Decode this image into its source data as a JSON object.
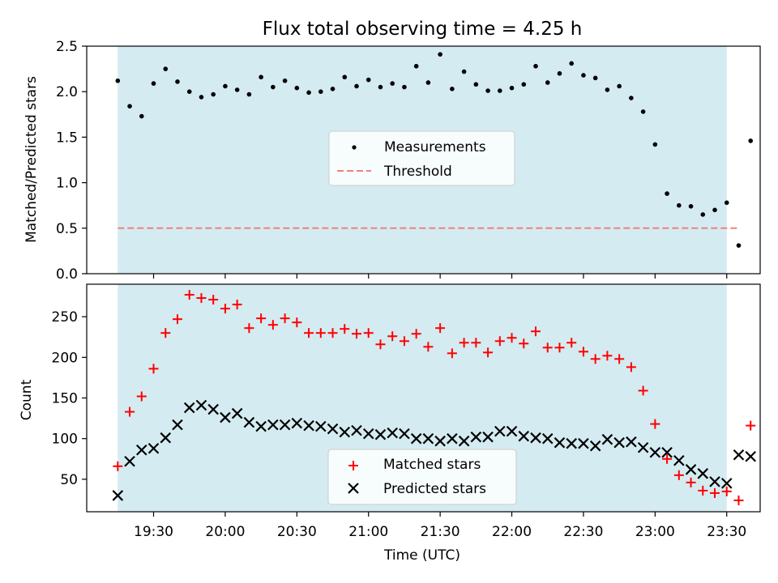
{
  "chart_data": {
    "title": "Flux total observing time = 4.25 h",
    "xlabel": "Time (UTC)",
    "x_tick_labels": [
      "19:30",
      "20:00",
      "20:30",
      "21:00",
      "21:30",
      "22:00",
      "22:30",
      "23:00",
      "23:30"
    ],
    "observing_window": [
      "19:15",
      "23:30"
    ],
    "shade_color": "#d4ebf1",
    "panels": [
      {
        "type": "scatter",
        "ylabel": "Matched/Predicted stars",
        "ylim": [
          0,
          2.5
        ],
        "y_ticks": [
          "0.0",
          "0.5",
          "1.0",
          "1.5",
          "2.0",
          "2.5"
        ],
        "threshold": 0.5,
        "legend": [
          "Measurements",
          "Threshold"
        ],
        "legend_position": "center",
        "series": [
          {
            "name": "Measurements",
            "color": "#000000",
            "marker": "dot",
            "x": [
              "19:15",
              "19:20",
              "19:25",
              "19:30",
              "19:35",
              "19:40",
              "19:45",
              "19:50",
              "19:55",
              "20:00",
              "20:05",
              "20:10",
              "20:15",
              "20:20",
              "20:25",
              "20:30",
              "20:35",
              "20:40",
              "20:45",
              "20:50",
              "20:55",
              "21:00",
              "21:05",
              "21:10",
              "21:15",
              "21:20",
              "21:25",
              "21:30",
              "21:35",
              "21:40",
              "21:45",
              "21:50",
              "21:55",
              "22:00",
              "22:05",
              "22:10",
              "22:15",
              "22:20",
              "22:25",
              "22:30",
              "22:35",
              "22:40",
              "22:45",
              "22:50",
              "22:55",
              "23:00",
              "23:05",
              "23:10",
              "23:15",
              "23:20",
              "23:25",
              "23:30",
              "23:35",
              "23:40"
            ],
            "values": [
              2.12,
              1.84,
              1.73,
              2.09,
              2.25,
              2.11,
              2.0,
              1.94,
              1.97,
              2.06,
              2.02,
              1.97,
              2.16,
              2.05,
              2.12,
              2.04,
              1.99,
              2.0,
              2.03,
              2.16,
              2.06,
              2.13,
              2.05,
              2.09,
              2.05,
              2.28,
              2.1,
              2.41,
              2.03,
              2.22,
              2.08,
              2.01,
              2.01,
              2.04,
              2.08,
              2.28,
              2.1,
              2.2,
              2.31,
              2.18,
              2.15,
              2.02,
              2.06,
              1.93,
              1.78,
              1.42,
              0.88,
              0.75,
              0.74,
              0.65,
              0.7,
              0.78,
              0.31,
              1.46
            ]
          },
          {
            "name": "Threshold",
            "color": "#f08080",
            "style": "dashed",
            "x": [
              "19:15",
              "23:35"
            ],
            "values": [
              0.5,
              0.5
            ]
          }
        ]
      },
      {
        "type": "scatter",
        "ylabel": "Count",
        "ylim": [
          10,
          290
        ],
        "y_ticks": [
          "50",
          "100",
          "150",
          "200",
          "250"
        ],
        "legend": [
          "Matched stars",
          "Predicted stars"
        ],
        "legend_position": "lower center",
        "series": [
          {
            "name": "Matched stars",
            "color": "#ff0000",
            "marker": "plus",
            "x": [
              "19:15",
              "19:20",
              "19:25",
              "19:30",
              "19:35",
              "19:40",
              "19:45",
              "19:50",
              "19:55",
              "20:00",
              "20:05",
              "20:10",
              "20:15",
              "20:20",
              "20:25",
              "20:30",
              "20:35",
              "20:40",
              "20:45",
              "20:50",
              "20:55",
              "21:00",
              "21:05",
              "21:10",
              "21:15",
              "21:20",
              "21:25",
              "21:30",
              "21:35",
              "21:40",
              "21:45",
              "21:50",
              "21:55",
              "22:00",
              "22:05",
              "22:10",
              "22:15",
              "22:20",
              "22:25",
              "22:30",
              "22:35",
              "22:40",
              "22:45",
              "22:50",
              "22:55",
              "23:00",
              "23:05",
              "23:10",
              "23:15",
              "23:20",
              "23:25",
              "23:30",
              "23:35",
              "23:40"
            ],
            "values": [
              66,
              133,
              152,
              186,
              230,
              247,
              277,
              273,
              271,
              260,
              265,
              236,
              248,
              240,
              248,
              243,
              230,
              230,
              230,
              235,
              229,
              230,
              216,
              226,
              220,
              229,
              213,
              236,
              205,
              218,
              218,
              206,
              220,
              224,
              217,
              232,
              212,
              212,
              218,
              207,
              198,
              202,
              198,
              188,
              159,
              118,
              75,
              55,
              46,
              36,
              33,
              35,
              24,
              116
            ]
          },
          {
            "name": "Predicted stars",
            "color": "#000000",
            "marker": "x",
            "x": [
              "19:15",
              "19:20",
              "19:25",
              "19:30",
              "19:35",
              "19:40",
              "19:45",
              "19:50",
              "19:55",
              "20:00",
              "20:05",
              "20:10",
              "20:15",
              "20:20",
              "20:25",
              "20:30",
              "20:35",
              "20:40",
              "20:45",
              "20:50",
              "20:55",
              "21:00",
              "21:05",
              "21:10",
              "21:15",
              "21:20",
              "21:25",
              "21:30",
              "21:35",
              "21:40",
              "21:45",
              "21:50",
              "21:55",
              "22:00",
              "22:05",
              "22:10",
              "22:15",
              "22:20",
              "22:25",
              "22:30",
              "22:35",
              "22:40",
              "22:45",
              "22:50",
              "22:55",
              "23:00",
              "23:05",
              "23:10",
              "23:15",
              "23:20",
              "23:25",
              "23:30",
              "23:35",
              "23:40"
            ],
            "values": [
              30,
              72,
              86,
              88,
              101,
              117,
              138,
              141,
              136,
              126,
              131,
              120,
              115,
              117,
              117,
              119,
              116,
              115,
              112,
              108,
              110,
              106,
              105,
              107,
              106,
              100,
              100,
              97,
              100,
              97,
              102,
              102,
              109,
              109,
              103,
              101,
              100,
              95,
              94,
              94,
              91,
              99,
              95,
              96,
              89,
              83,
              83,
              73,
              62,
              57,
              47,
              45,
              80,
              78
            ]
          }
        ]
      }
    ]
  }
}
